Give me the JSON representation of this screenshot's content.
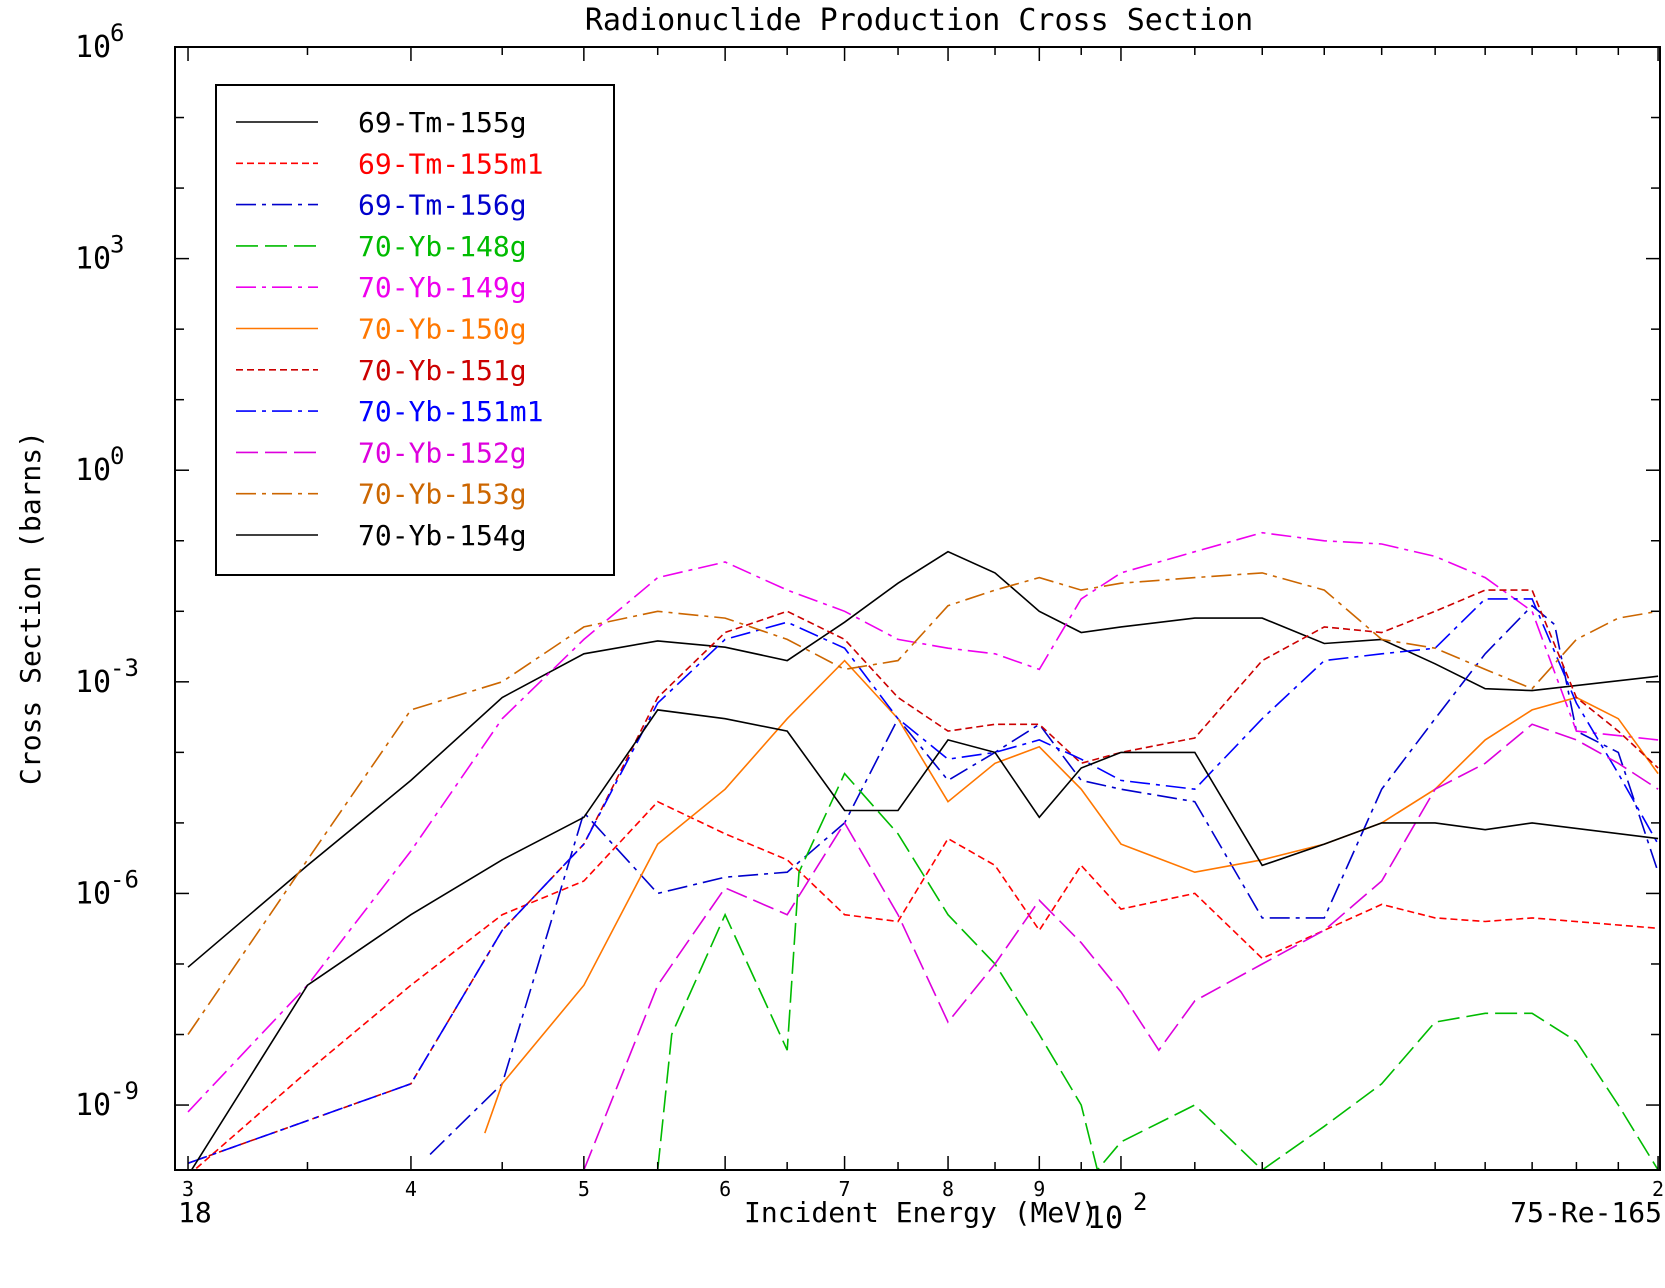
{
  "chart_data": {
    "type": "line",
    "title": "Radionuclide Production Cross Section",
    "xlabel": "Incident Energy (MeV)",
    "ylabel": "Cross Section (barns)",
    "x_scale": "log",
    "y_scale": "log",
    "xlim": [
      29.5,
      200.5
    ],
    "ylim": [
      1.2e-10,
      1000000.0
    ],
    "x_tick_labels": [
      {
        "value": 30,
        "label": "3"
      },
      {
        "value": 40,
        "label": "4"
      },
      {
        "value": 50,
        "label": "5"
      },
      {
        "value": 60,
        "label": "6"
      },
      {
        "value": 70,
        "label": "7"
      },
      {
        "value": 80,
        "label": "8"
      },
      {
        "value": 90,
        "label": "9"
      },
      {
        "value": 200,
        "label": "2"
      }
    ],
    "x_decade_label": {
      "value": 100,
      "base": "10",
      "exp": "2"
    },
    "y_tick_labels": [
      {
        "value": 1000000.0,
        "base": "10",
        "exp": "6"
      },
      {
        "value": 1000.0,
        "base": "10",
        "exp": "3"
      },
      {
        "value": 1,
        "base": "10",
        "exp": "0"
      },
      {
        "value": 0.001,
        "base": "10",
        "exp": "-3"
      },
      {
        "value": 1e-06,
        "base": "10",
        "exp": "-6"
      },
      {
        "value": 1e-09,
        "base": "10",
        "exp": "-9"
      }
    ],
    "grid": false,
    "legend_position": "top-left",
    "footer_left": "18",
    "footer_right": "75-Re-165",
    "series": [
      {
        "name": "69-Tm-155g",
        "color": "#000000",
        "dash": "solid",
        "points": [
          [
            30,
            9e-08
          ],
          [
            35,
            2.5e-06
          ],
          [
            40,
            4e-05
          ],
          [
            45,
            0.0006
          ],
          [
            50,
            0.0025
          ],
          [
            55,
            0.0038
          ],
          [
            60,
            0.0031
          ],
          [
            65,
            0.002
          ],
          [
            70,
            0.007
          ],
          [
            75,
            0.025
          ],
          [
            80,
            0.07
          ],
          [
            85,
            0.035
          ],
          [
            90,
            0.01
          ],
          [
            95,
            0.005
          ],
          [
            100,
            0.006
          ],
          [
            110,
            0.008
          ],
          [
            120,
            0.008
          ],
          [
            130,
            0.0035
          ],
          [
            140,
            0.004
          ],
          [
            150,
            0.0018
          ],
          [
            160,
            0.0008
          ],
          [
            170,
            0.00075
          ],
          [
            200,
            0.0012
          ]
        ]
      },
      {
        "name": "69-Tm-155m1",
        "color": "#ff0000",
        "dash": "short",
        "points": [
          [
            30,
            1e-10
          ],
          [
            35,
            3e-09
          ],
          [
            40,
            5e-08
          ],
          [
            45,
            5e-07
          ],
          [
            50,
            1.5e-06
          ],
          [
            55,
            2e-05
          ],
          [
            60,
            7e-06
          ],
          [
            65,
            3e-06
          ],
          [
            70,
            5e-07
          ],
          [
            75,
            4e-07
          ],
          [
            80,
            6e-06
          ],
          [
            85,
            2.5e-06
          ],
          [
            90,
            3e-07
          ],
          [
            95,
            2.5e-06
          ],
          [
            100,
            6e-07
          ],
          [
            110,
            1e-06
          ],
          [
            120,
            1.2e-07
          ],
          [
            130,
            3e-07
          ],
          [
            140,
            7e-07
          ],
          [
            150,
            4.5e-07
          ],
          [
            160,
            4e-07
          ],
          [
            170,
            4.5e-07
          ],
          [
            200,
            3.2e-07
          ]
        ]
      },
      {
        "name": "69-Tm-156g",
        "color": "#0000cc",
        "dash": "dashdot",
        "points": [
          [
            41,
            2e-10
          ],
          [
            45,
            2e-09
          ],
          [
            50,
            1.4e-05
          ],
          [
            55,
            1e-06
          ],
          [
            60,
            1.7e-06
          ],
          [
            65,
            2e-06
          ],
          [
            70,
            1e-05
          ],
          [
            75,
            0.0003
          ],
          [
            80,
            4e-05
          ],
          [
            85,
            0.0001
          ],
          [
            90,
            0.00025
          ],
          [
            95,
            4e-05
          ],
          [
            100,
            3e-05
          ],
          [
            110,
            2e-05
          ],
          [
            120,
            4.5e-07
          ],
          [
            130,
            4.5e-07
          ],
          [
            140,
            3e-05
          ],
          [
            150,
            0.0003
          ],
          [
            160,
            0.0025
          ],
          [
            170,
            0.012
          ],
          [
            175,
            0.0065
          ],
          [
            180,
            0.0002
          ],
          [
            190,
            0.0001
          ],
          [
            200,
            2e-06
          ]
        ]
      },
      {
        "name": "70-Yb-148g",
        "color": "#00bb00",
        "dash": "long",
        "points": [
          [
            55,
            1.2e-10
          ],
          [
            56,
            1e-08
          ],
          [
            60,
            5e-07
          ],
          [
            65,
            6e-09
          ],
          [
            66,
            2e-06
          ],
          [
            70,
            5e-05
          ],
          [
            75,
            7e-06
          ],
          [
            80,
            5e-07
          ],
          [
            85,
            1e-07
          ],
          [
            90,
            1e-08
          ],
          [
            95,
            1e-09
          ],
          [
            97,
            1.2e-10
          ],
          [
            100,
            3e-10
          ],
          [
            110,
            1e-09
          ],
          [
            120,
            1.2e-10
          ],
          [
            130,
            5e-10
          ],
          [
            140,
            2e-09
          ],
          [
            150,
            1.5e-08
          ],
          [
            160,
            2e-08
          ],
          [
            170,
            2e-08
          ],
          [
            180,
            8e-09
          ],
          [
            190,
            1e-09
          ],
          [
            200,
            1.2e-10
          ]
        ]
      },
      {
        "name": "70-Yb-149g",
        "color": "#ee00ee",
        "dash": "dashdot",
        "points": [
          [
            30,
            8e-10
          ],
          [
            35,
            5e-08
          ],
          [
            40,
            4e-06
          ],
          [
            45,
            0.0003
          ],
          [
            50,
            0.004
          ],
          [
            55,
            0.03
          ],
          [
            60,
            0.05
          ],
          [
            65,
            0.02
          ],
          [
            70,
            0.01
          ],
          [
            75,
            0.004
          ],
          [
            80,
            0.003
          ],
          [
            85,
            0.0025
          ],
          [
            90,
            0.0015
          ],
          [
            95,
            0.015
          ],
          [
            100,
            0.035
          ],
          [
            110,
            0.07
          ],
          [
            120,
            0.13
          ],
          [
            130,
            0.1
          ],
          [
            140,
            0.09
          ],
          [
            150,
            0.06
          ],
          [
            160,
            0.03
          ],
          [
            170,
            0.01
          ],
          [
            180,
            0.0002
          ],
          [
            200,
            0.00015
          ]
        ]
      },
      {
        "name": "70-Yb-150g",
        "color": "#ff7700",
        "dash": "solid",
        "points": [
          [
            44,
            4e-10
          ],
          [
            45,
            2e-09
          ],
          [
            50,
            5e-08
          ],
          [
            55,
            5e-06
          ],
          [
            60,
            3e-05
          ],
          [
            65,
            0.0003
          ],
          [
            70,
            0.002
          ],
          [
            75,
            0.0003
          ],
          [
            80,
            2e-05
          ],
          [
            85,
            7e-05
          ],
          [
            90,
            0.00012
          ],
          [
            95,
            3e-05
          ],
          [
            100,
            5e-06
          ],
          [
            110,
            2e-06
          ],
          [
            120,
            3e-06
          ],
          [
            130,
            5e-06
          ],
          [
            140,
            1e-05
          ],
          [
            150,
            3e-05
          ],
          [
            160,
            0.00015
          ],
          [
            170,
            0.0004
          ],
          [
            180,
            0.0006
          ],
          [
            190,
            0.0003
          ],
          [
            200,
            5e-05
          ]
        ]
      },
      {
        "name": "70-Yb-151g",
        "color": "#cc0000",
        "dash": "short",
        "points": [
          [
            30,
            1.5e-10
          ],
          [
            40,
            2e-09
          ],
          [
            45,
            3e-07
          ],
          [
            50,
            5e-06
          ],
          [
            55,
            0.0006
          ],
          [
            60,
            0.005
          ],
          [
            65,
            0.01
          ],
          [
            70,
            0.004
          ],
          [
            75,
            0.0006
          ],
          [
            80,
            0.0002
          ],
          [
            85,
            0.00025
          ],
          [
            90,
            0.00025
          ],
          [
            95,
            7e-05
          ],
          [
            100,
            0.0001
          ],
          [
            110,
            0.00016
          ],
          [
            120,
            0.002
          ],
          [
            130,
            0.006
          ],
          [
            140,
            0.005
          ],
          [
            150,
            0.01
          ],
          [
            160,
            0.02
          ],
          [
            170,
            0.02
          ],
          [
            180,
            0.0006
          ],
          [
            190,
            0.0002
          ],
          [
            200,
            6e-05
          ]
        ]
      },
      {
        "name": "70-Yb-151m1",
        "color": "#0000ff",
        "dash": "dashdot",
        "points": [
          [
            30,
            1.5e-10
          ],
          [
            40,
            2e-09
          ],
          [
            45,
            3e-07
          ],
          [
            50,
            5e-06
          ],
          [
            55,
            0.0005
          ],
          [
            60,
            0.004
          ],
          [
            65,
            0.007
          ],
          [
            70,
            0.003
          ],
          [
            75,
            0.0003
          ],
          [
            80,
            8e-05
          ],
          [
            85,
            0.0001
          ],
          [
            90,
            0.00015
          ],
          [
            95,
            8e-05
          ],
          [
            100,
            4e-05
          ],
          [
            110,
            3e-05
          ],
          [
            120,
            0.0003
          ],
          [
            130,
            0.002
          ],
          [
            140,
            0.0025
          ],
          [
            150,
            0.003
          ],
          [
            160,
            0.015
          ],
          [
            170,
            0.015
          ],
          [
            180,
            0.0005
          ],
          [
            190,
            5e-05
          ],
          [
            200,
            5e-06
          ]
        ]
      },
      {
        "name": "70-Yb-152g",
        "color": "#dd00dd",
        "dash": "long",
        "points": [
          [
            50,
            1.2e-10
          ],
          [
            55,
            5e-08
          ],
          [
            60,
            1.2e-06
          ],
          [
            65,
            5e-07
          ],
          [
            70,
            1e-05
          ],
          [
            75,
            5e-07
          ],
          [
            80,
            1.5e-08
          ],
          [
            85,
            1e-07
          ],
          [
            90,
            8e-07
          ],
          [
            95,
            2e-07
          ],
          [
            100,
            4e-08
          ],
          [
            105,
            6e-09
          ],
          [
            110,
            3e-08
          ],
          [
            120,
            1e-07
          ],
          [
            130,
            3e-07
          ],
          [
            140,
            1.5e-06
          ],
          [
            150,
            3e-05
          ],
          [
            160,
            7e-05
          ],
          [
            170,
            0.00025
          ],
          [
            180,
            0.00015
          ],
          [
            190,
            7e-05
          ],
          [
            200,
            3e-05
          ]
        ]
      },
      {
        "name": "70-Yb-153g",
        "color": "#cc6600",
        "dash": "dashdot",
        "points": [
          [
            30,
            1e-08
          ],
          [
            35,
            3e-06
          ],
          [
            40,
            0.0004
          ],
          [
            45,
            0.001
          ],
          [
            50,
            0.006
          ],
          [
            55,
            0.01
          ],
          [
            60,
            0.008
          ],
          [
            65,
            0.004
          ],
          [
            70,
            0.0015
          ],
          [
            75,
            0.002
          ],
          [
            80,
            0.012
          ],
          [
            85,
            0.02
          ],
          [
            90,
            0.03
          ],
          [
            95,
            0.02
          ],
          [
            100,
            0.025
          ],
          [
            110,
            0.03
          ],
          [
            120,
            0.035
          ],
          [
            130,
            0.02
          ],
          [
            140,
            0.004
          ],
          [
            150,
            0.003
          ],
          [
            160,
            0.0015
          ],
          [
            170,
            0.0008
          ],
          [
            180,
            0.004
          ],
          [
            190,
            0.008
          ],
          [
            200,
            0.01
          ]
        ]
      },
      {
        "name": "70-Yb-154g",
        "color": "#000000",
        "dash": "solid",
        "points": [
          [
            30,
            1e-10
          ],
          [
            35,
            5e-08
          ],
          [
            40,
            5e-07
          ],
          [
            45,
            3e-06
          ],
          [
            50,
            1.2e-05
          ],
          [
            55,
            0.0004
          ],
          [
            60,
            0.0003
          ],
          [
            65,
            0.0002
          ],
          [
            70,
            1.5e-05
          ],
          [
            75,
            1.5e-05
          ],
          [
            80,
            0.00015
          ],
          [
            85,
            0.0001
          ],
          [
            90,
            1.2e-05
          ],
          [
            95,
            6e-05
          ],
          [
            100,
            0.0001
          ],
          [
            110,
            0.0001
          ],
          [
            120,
            2.5e-06
          ],
          [
            130,
            5e-06
          ],
          [
            140,
            1e-05
          ],
          [
            150,
            1e-05
          ],
          [
            160,
            8e-06
          ],
          [
            170,
            1e-05
          ],
          [
            200,
            6e-06
          ]
        ]
      }
    ]
  }
}
